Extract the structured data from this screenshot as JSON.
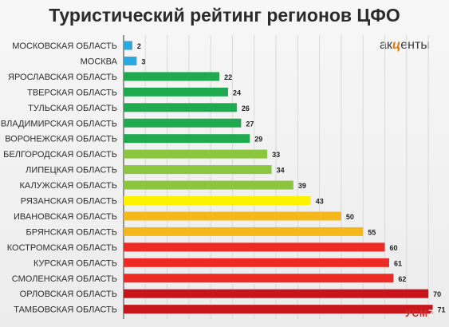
{
  "chart_data": {
    "type": "bar",
    "orientation": "horizontal",
    "title": "Туристический рейтинг регионов ЦФО",
    "categories": [
      "МОСКОВСКАЯ ОБЛАСТЬ",
      "МОСКВА",
      "ЯРОСЛАВСКАЯ ОБЛАСТЬ",
      "ТВЕРСКАЯ ОБЛАСТЬ",
      "ТУЛЬСКАЯ ОБЛАСТЬ",
      "ВЛАДИМИРСКАЯ ОБЛАСТЬ",
      "ВОРОНЕЖСКАЯ ОБЛАСТЬ",
      "БЕЛГОРОДСКАЯ ОБЛАСТЬ",
      "ЛИПЕЦКАЯ ОБЛАСТЬ",
      "КАЛУЖСКАЯ ОБЛАСТЬ",
      "РЯЗАНСКАЯ ОБЛАСТЬ",
      "ИВАНОВСКАЯ ОБЛАСТЬ",
      "БРЯНСКАЯ ОБЛАСТЬ",
      "КОСТРОМСКАЯ ОБЛАСТЬ",
      "КУРСКАЯ ОБЛАСТЬ",
      "СМОЛЕНСКАЯ ОБЛАСТЬ",
      "ОРЛОВСКАЯ ОБЛАСТЬ",
      "ТАМБОВСКАЯ ОБЛАСТЬ"
    ],
    "values": [
      2,
      3,
      22,
      24,
      26,
      27,
      29,
      33,
      34,
      39,
      43,
      50,
      55,
      60,
      61,
      62,
      70,
      71
    ],
    "colors": [
      "#29a9e0",
      "#29a9e0",
      "#1faa4f",
      "#1faa4f",
      "#1faa4f",
      "#1faa4f",
      "#1faa4f",
      "#8cc63e",
      "#8cc63e",
      "#8cc63e",
      "#fff200",
      "#f5b81c",
      "#f5b81c",
      "#ee2a24",
      "#ee2a24",
      "#ee2a24",
      "#c8151b",
      "#c8151b"
    ],
    "xlim": [
      0,
      72
    ],
    "grid": true,
    "legend": "none"
  },
  "logo": {
    "prefix": "ак",
    "mark": "ц",
    "suffix": "енты"
  },
  "watermark": {
    "text": "УСМ",
    "suffix": "71"
  }
}
